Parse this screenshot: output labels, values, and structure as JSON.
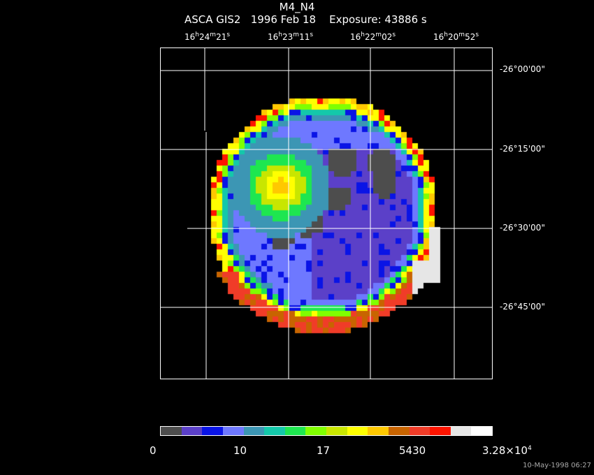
{
  "header": {
    "title": "M4_N4",
    "subtitle": "ASCA GIS2   1996 Feb 18    Exposure: 43886 s"
  },
  "ra_labels": [
    {
      "h": "16",
      "m": "24",
      "s": "21"
    },
    {
      "h": "16",
      "m": "23",
      "s": "11"
    },
    {
      "h": "16",
      "m": "22",
      "s": "02"
    },
    {
      "h": "16",
      "m": "20",
      "s": "52"
    }
  ],
  "dec_labels": [
    "-26°00'00\"",
    "-26°15'00\"",
    "-26°30'00\"",
    "-26°45'00\""
  ],
  "colorbar": {
    "colors": [
      "#4d4d4d",
      "#5b40c8",
      "#0a14e6",
      "#6e78ff",
      "#3c96b4",
      "#14c8aa",
      "#1ee650",
      "#80ff00",
      "#c8e600",
      "#ffff00",
      "#ffc800",
      "#c86400",
      "#f03c28",
      "#ff1400",
      "#e6e6e6",
      "#ffffff"
    ],
    "labels": [
      "0",
      "10",
      "17",
      "5430",
      "3.28×10"
    ],
    "exponent": "4"
  },
  "footer": {
    "timestamp": "10-May-1998 06:27"
  }
}
